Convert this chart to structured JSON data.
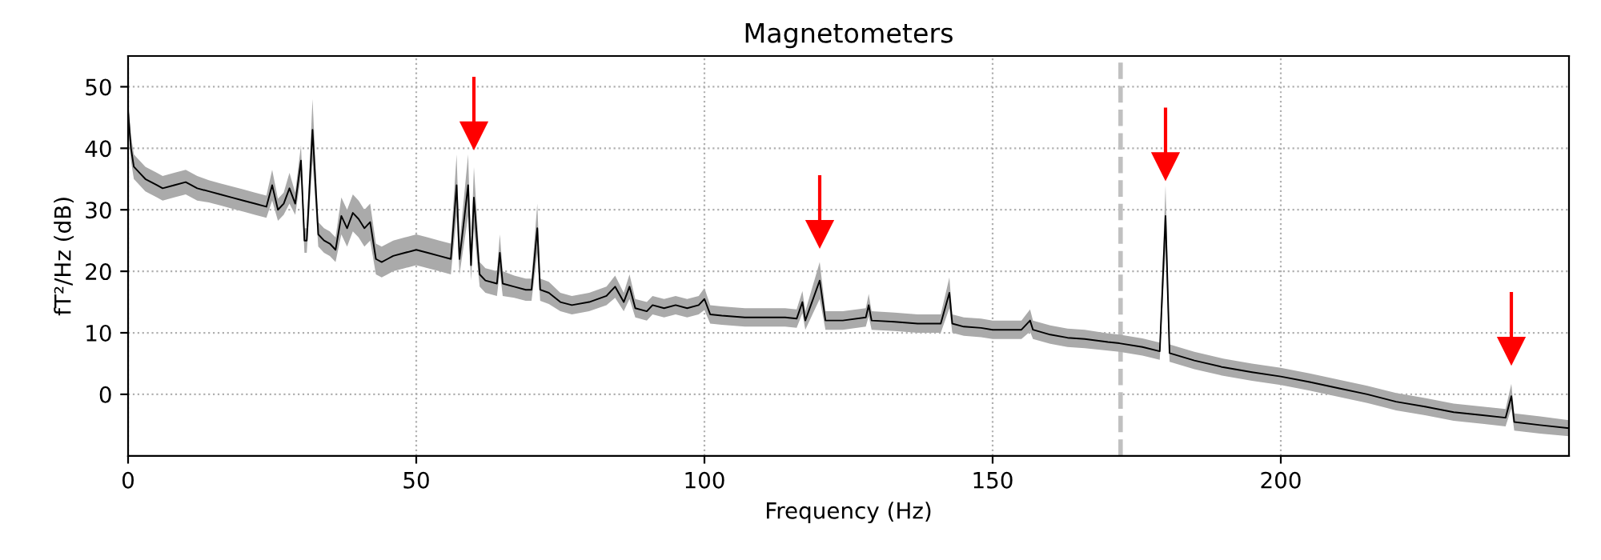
{
  "chart_data": {
    "type": "line",
    "title": "Magnetometers",
    "xlabel": "Frequency (Hz)",
    "ylabel": "fT²/Hz (dB)",
    "xlim": [
      0,
      250
    ],
    "xticks": [
      0,
      50,
      100,
      150,
      200
    ],
    "ylim": [
      -10,
      55
    ],
    "yticks": [
      0,
      10,
      20,
      30,
      40,
      50
    ],
    "grid": true,
    "line_style": "solid",
    "series": [
      {
        "type": "scatter",
        "color": "#ff0000",
        "marker": "triangle",
        "x": [
          60,
          120,
          180,
          240
        ],
        "values": [
          42,
          26,
          37,
          7
        ]
      },
      {
        "color": "#000000",
        "x": [
          0,
          0.5,
          1,
          2,
          3,
          4,
          5,
          6,
          8,
          10,
          12,
          14,
          16,
          18,
          20,
          22,
          24,
          25,
          26,
          27,
          28,
          29,
          30,
          30.6,
          31,
          32,
          33,
          34,
          35,
          36,
          37,
          38,
          39,
          40,
          41,
          42,
          43,
          44,
          45,
          46,
          48,
          50,
          52,
          54,
          56,
          57,
          57.5,
          59,
          59.5,
          60,
          61,
          62,
          64,
          64.5,
          65,
          67,
          69,
          70,
          71,
          71.5,
          73,
          75,
          77,
          80,
          83,
          84.5,
          86,
          87,
          88,
          90,
          91,
          93,
          95,
          97,
          99,
          100,
          101,
          103,
          107,
          110,
          114,
          116,
          117,
          117.5,
          120,
          121,
          124,
          128,
          128.5,
          129,
          133,
          137,
          141,
          142.5,
          143,
          145,
          148,
          150,
          152,
          155,
          156.5,
          157,
          160,
          163,
          166,
          170,
          172,
          176,
          179,
          180,
          180.7,
          185,
          190,
          195,
          200,
          205,
          210,
          215,
          220,
          225,
          230,
          235,
          239,
          240,
          240.5,
          245,
          250
        ],
        "values": [
          46,
          40,
          37,
          36,
          35,
          34.5,
          34,
          33.5,
          34,
          34.5,
          33.5,
          33,
          32.5,
          32,
          31.5,
          31,
          30.5,
          34,
          30,
          31,
          33.5,
          31,
          38,
          25,
          25,
          43,
          26,
          25,
          24.5,
          23.5,
          29,
          27,
          29.5,
          28.5,
          27,
          28,
          22,
          21.5,
          22,
          22.5,
          23,
          23.5,
          23,
          22.5,
          22,
          34,
          22,
          34,
          21,
          32,
          19.5,
          18.5,
          18,
          23,
          18,
          17.5,
          17,
          17,
          27,
          17,
          16.5,
          15,
          14.5,
          15,
          16,
          17.5,
          15,
          17.5,
          14,
          13.5,
          14.5,
          14,
          14.5,
          14,
          14.5,
          15.5,
          13,
          12.8,
          12.5,
          12.5,
          12.5,
          12.3,
          15,
          12,
          18.5,
          12,
          12,
          12.5,
          14.5,
          12,
          11.8,
          11.5,
          11.5,
          16.5,
          11.5,
          11,
          10.8,
          10.5,
          10.5,
          10.5,
          12,
          10.5,
          9.7,
          9.2,
          9,
          8.5,
          8.3,
          7.7,
          7,
          29,
          6.7,
          5.5,
          4.4,
          3.6,
          2.9,
          2,
          1,
          0,
          -1.2,
          -2,
          -2.9,
          -3.4,
          -3.8,
          -0.3,
          -4.5,
          -5,
          -5.5
        ],
        "lower": [
          44,
          38,
          35,
          34,
          33,
          32.5,
          32,
          31.5,
          32,
          32.5,
          31.5,
          31.2,
          30.7,
          30.2,
          29.7,
          29.2,
          28.7,
          31.5,
          28.2,
          29.2,
          31,
          29.2,
          35.5,
          23,
          23,
          38,
          24,
          23,
          22.5,
          21.5,
          26,
          24,
          26.5,
          25.5,
          24,
          25,
          19.5,
          19,
          19.5,
          20,
          20.5,
          21,
          20.5,
          20,
          19.5,
          29,
          19.5,
          29,
          18.5,
          27,
          17.5,
          16.5,
          16,
          20,
          16,
          15.7,
          15.2,
          15.2,
          23,
          15.2,
          14.7,
          13.5,
          13,
          13.5,
          14.5,
          15.7,
          13.5,
          15.5,
          12.5,
          12,
          13,
          12.5,
          13,
          12.5,
          13,
          13.7,
          11.5,
          11.3,
          11,
          11,
          11,
          10.8,
          13.2,
          10.5,
          15.5,
          10.5,
          10.5,
          11,
          12.7,
          10.5,
          10.3,
          10,
          10,
          14,
          10,
          9.5,
          9.3,
          9,
          9,
          9,
          10.2,
          9,
          8.2,
          7.7,
          7.5,
          7.1,
          6.9,
          6.3,
          5.6,
          24,
          5.3,
          4.1,
          3,
          2.2,
          1.5,
          0.6,
          -0.4,
          -1.4,
          -2.6,
          -3.4,
          -4.3,
          -4.8,
          -5.2,
          -2.3,
          -5.9,
          -6.4,
          -6.8
        ],
        "upper": [
          48,
          42,
          39,
          38,
          37,
          36.5,
          36,
          35.5,
          36,
          36.5,
          35.5,
          34.8,
          34.3,
          33.8,
          33.3,
          32.8,
          32.3,
          36.5,
          31.8,
          32.8,
          36,
          32.8,
          40.5,
          27,
          27,
          48,
          28,
          27,
          26.5,
          25.5,
          32,
          30,
          32.5,
          31.5,
          30,
          31,
          24.5,
          24,
          24.5,
          25,
          25.5,
          26,
          25.5,
          25,
          24.5,
          39,
          24.5,
          39,
          23.5,
          37,
          21.5,
          20.5,
          20,
          26,
          20,
          19.3,
          18.8,
          18.8,
          31,
          18.8,
          18.3,
          16.5,
          16,
          16.5,
          17.5,
          19.3,
          16.5,
          19.5,
          15.5,
          15,
          16,
          15.5,
          16,
          15.5,
          16,
          17.3,
          14.5,
          14.3,
          14,
          14,
          14,
          13.8,
          16.8,
          13.5,
          21.5,
          13.5,
          13.5,
          14,
          16.3,
          13.5,
          13.3,
          13,
          13,
          19,
          13,
          12.5,
          12.3,
          12,
          12,
          12,
          13.8,
          12,
          11.2,
          10.7,
          10.5,
          9.9,
          9.7,
          9.1,
          8.4,
          34,
          8.1,
          6.9,
          5.8,
          5,
          4.3,
          3.4,
          2.4,
          1.4,
          0.2,
          -0.6,
          -1.5,
          -2,
          -2.4,
          1.7,
          -3.1,
          -3.6,
          -4.2
        ]
      }
    ],
    "ref_lines": [
      {
        "axis": "x",
        "value": 172.2,
        "color": "#c0c0c0",
        "line_style": "dashed"
      }
    ]
  }
}
